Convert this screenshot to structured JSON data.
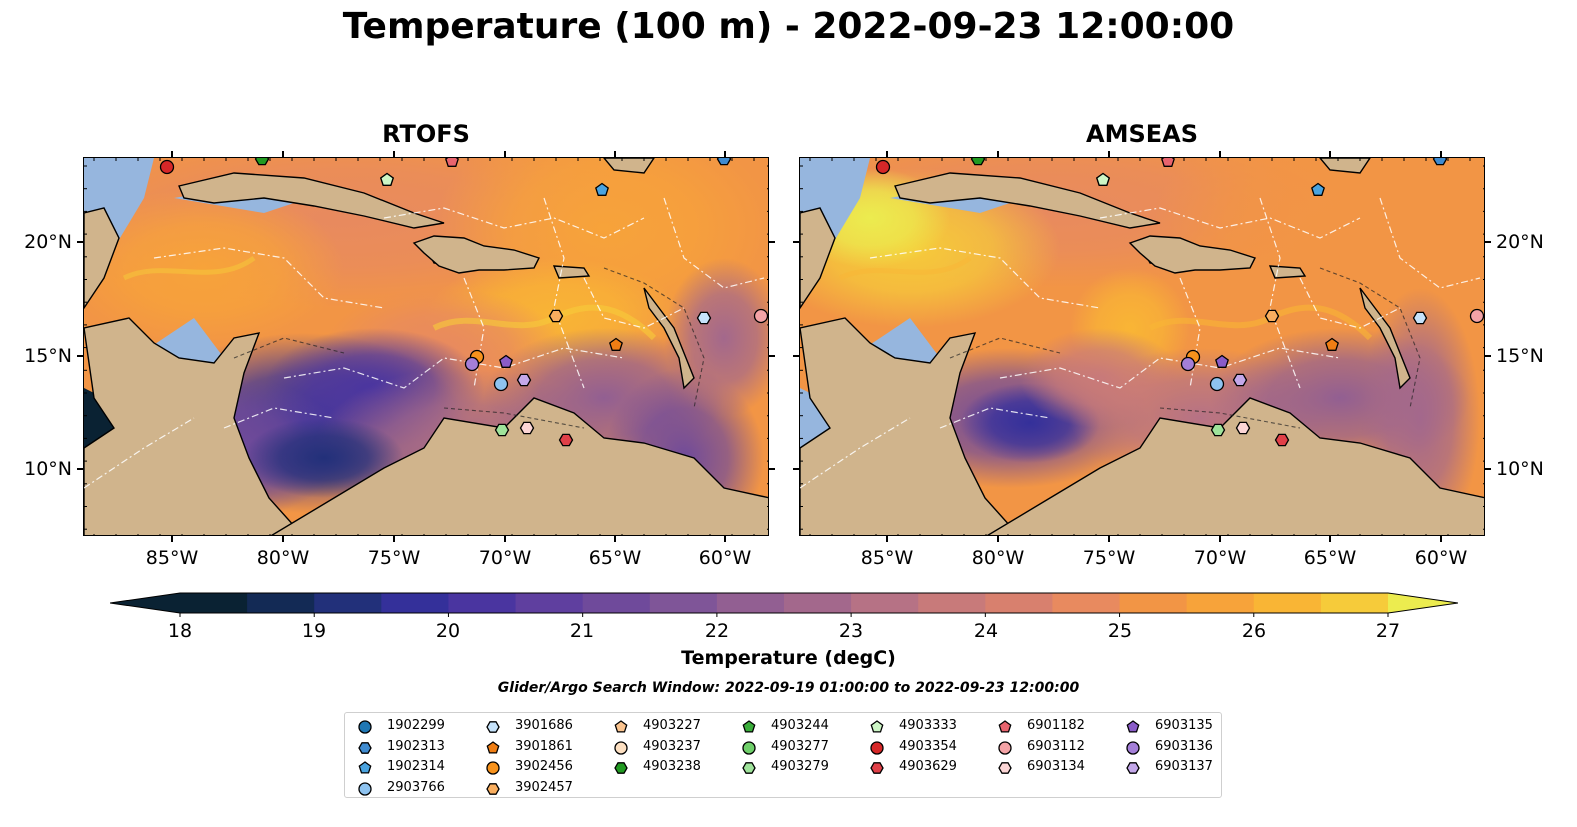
{
  "title": "Temperature (100 m) - 2022-09-23 12:00:00",
  "panels": [
    {
      "title": "RTOFS",
      "variant": "rtofs"
    },
    {
      "title": "AMSEAS",
      "variant": "amseas"
    }
  ],
  "axes": {
    "lon_ticks": [
      "85°W",
      "80°W",
      "75°W",
      "70°W",
      "65°W",
      "60°W"
    ],
    "lat_ticks": [
      "20°N",
      "15°N",
      "10°N"
    ]
  },
  "colorbar": {
    "label": "Temperature (degC)",
    "ticks": [
      "18",
      "19",
      "20",
      "21",
      "22",
      "23",
      "24",
      "25",
      "26",
      "27"
    ],
    "min": 18,
    "max": 27,
    "step": 0.5,
    "colors": [
      "#0a2233",
      "#132a55",
      "#22307a",
      "#34309a",
      "#4a35a0",
      "#5f3f9f",
      "#6f4a9b",
      "#7f5598",
      "#925f92",
      "#a3688c",
      "#b67285",
      "#c87a7a",
      "#d8806e",
      "#e88a5f",
      "#f29545",
      "#f7a33a",
      "#f9b535",
      "#f6cb3a",
      "#ecec4f"
    ]
  },
  "search_window": "Glider/Argo Search Window: 2022-09-19 01:00:00 to 2022-09-23 12:00:00",
  "legend": [
    {
      "id": "1902299",
      "marker": "circle",
      "color": "#1f77b4"
    },
    {
      "id": "1902313",
      "marker": "hexagon",
      "color": "#3f8bd0"
    },
    {
      "id": "1902314",
      "marker": "pentagon",
      "color": "#4aa3df"
    },
    {
      "id": "2903766",
      "marker": "circle",
      "color": "#8ec3f0"
    },
    {
      "id": "3901686",
      "marker": "hexagon",
      "color": "#c6e3fb"
    },
    {
      "id": "3901861",
      "marker": "pentagon",
      "color": "#f07e14"
    },
    {
      "id": "3902456",
      "marker": "circle",
      "color": "#f7921c"
    },
    {
      "id": "3902457",
      "marker": "hexagon",
      "color": "#f9ae5f"
    },
    {
      "id": "4903227",
      "marker": "pentagon",
      "color": "#fbc48f"
    },
    {
      "id": "4903237",
      "marker": "circle",
      "color": "#fde0c2"
    },
    {
      "id": "4903238",
      "marker": "hexagon",
      "color": "#219a21"
    },
    {
      "id": "4903244",
      "marker": "pentagon",
      "color": "#3aad3a"
    },
    {
      "id": "4903277",
      "marker": "circle",
      "color": "#6fcf6a"
    },
    {
      "id": "4903279",
      "marker": "hexagon",
      "color": "#9fe39b"
    },
    {
      "id": "4903333",
      "marker": "pentagon",
      "color": "#cdf6c6"
    },
    {
      "id": "4903354",
      "marker": "circle",
      "color": "#d62728"
    },
    {
      "id": "4903629",
      "marker": "hexagon",
      "color": "#e04048"
    },
    {
      "id": "6901182",
      "marker": "pentagon",
      "color": "#e8646e"
    },
    {
      "id": "6903112",
      "marker": "circle",
      "color": "#f4a3a6"
    },
    {
      "id": "6903134",
      "marker": "hexagon",
      "color": "#fcd6d6"
    },
    {
      "id": "6903135",
      "marker": "pentagon",
      "color": "#8a5cc8"
    },
    {
      "id": "6903136",
      "marker": "circle",
      "color": "#a47fd8"
    },
    {
      "id": "6903137",
      "marker": "hexagon",
      "color": "#c4a8ea"
    }
  ]
}
